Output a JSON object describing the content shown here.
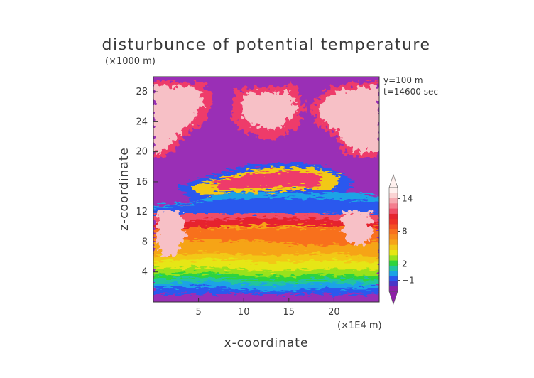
{
  "chart_data": {
    "type": "heatmap",
    "title": "disturbunce of potential temperature",
    "xlabel": "x-coordinate",
    "ylabel": "z-coordinate",
    "x_unit": "(×1E4 m)",
    "y_unit": "(×1000 m)",
    "annotations": [
      "y=100 m",
      "t=14600 sec"
    ],
    "xlim": [
      0,
      25
    ],
    "ylim": [
      0,
      30
    ],
    "x_ticks": [
      5,
      10,
      15,
      20
    ],
    "y_ticks": [
      4,
      8,
      12,
      16,
      20,
      24,
      28
    ],
    "colorbar": {
      "labels": [
        {
          "value": 14,
          "text": "14"
        },
        {
          "value": 8,
          "text": "8"
        },
        {
          "value": 2,
          "text": "2"
        },
        {
          "value": -1,
          "text": "−1"
        }
      ],
      "levels": [
        -3,
        -2,
        -1,
        0,
        1,
        2,
        3,
        4,
        5,
        6,
        7,
        8,
        9,
        10,
        11,
        12,
        13,
        14,
        15,
        16
      ],
      "colors": [
        "#8e20a8",
        "#4a36c8",
        "#2a58ee",
        "#1aa3e6",
        "#22c4a0",
        "#2ed43c",
        "#98e21c",
        "#e6e612",
        "#f2c816",
        "#f6a418",
        "#f88a1c",
        "#f8701e",
        "#f45022",
        "#ee3226",
        "#e6242e",
        "#f04e66",
        "#f47e8e",
        "#f6a9b0",
        "#fbd3d3",
        "#fff0ee"
      ],
      "extend": "both"
    }
  }
}
